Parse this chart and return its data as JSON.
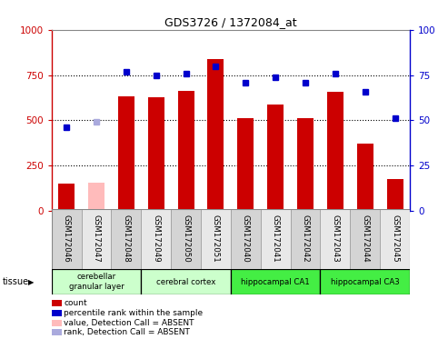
{
  "title": "GDS3726 / 1372084_at",
  "samples": [
    "GSM172046",
    "GSM172047",
    "GSM172048",
    "GSM172049",
    "GSM172050",
    "GSM172051",
    "GSM172040",
    "GSM172041",
    "GSM172042",
    "GSM172043",
    "GSM172044",
    "GSM172045"
  ],
  "bar_values": [
    150,
    155,
    635,
    630,
    665,
    840,
    510,
    590,
    510,
    660,
    370,
    175
  ],
  "bar_colors": [
    "#cc0000",
    "#ffbbbb",
    "#cc0000",
    "#cc0000",
    "#cc0000",
    "#cc0000",
    "#cc0000",
    "#cc0000",
    "#cc0000",
    "#cc0000",
    "#cc0000",
    "#cc0000"
  ],
  "rank_values": [
    46,
    49,
    77,
    75,
    76,
    80,
    71,
    74,
    71,
    76,
    66,
    51
  ],
  "rank_colors": [
    "#0000cc",
    "#aaaadd",
    "#0000cc",
    "#0000cc",
    "#0000cc",
    "#0000cc",
    "#0000cc",
    "#0000cc",
    "#0000cc",
    "#0000cc",
    "#0000cc",
    "#0000cc"
  ],
  "ylim_left": [
    0,
    1000
  ],
  "ylim_right": [
    0,
    100
  ],
  "yticks_left": [
    0,
    250,
    500,
    750,
    1000
  ],
  "yticks_right": [
    0,
    25,
    50,
    75,
    100
  ],
  "tissue_groups": [
    {
      "label": "cerebellar\ngranular layer",
      "start": 0,
      "end": 3,
      "color": "#ccffcc"
    },
    {
      "label": "cerebral cortex",
      "start": 3,
      "end": 6,
      "color": "#ccffcc"
    },
    {
      "label": "hippocampal CA1",
      "start": 6,
      "end": 9,
      "color": "#44ee44"
    },
    {
      "label": "hippocampal CA3",
      "start": 9,
      "end": 12,
      "color": "#44ee44"
    }
  ],
  "legend_items": [
    {
      "label": "count",
      "color": "#cc0000"
    },
    {
      "label": "percentile rank within the sample",
      "color": "#0000cc"
    },
    {
      "label": "value, Detection Call = ABSENT",
      "color": "#ffbbbb"
    },
    {
      "label": "rank, Detection Call = ABSENT",
      "color": "#aaaadd"
    }
  ],
  "tissue_label": "tissue",
  "left_axis_color": "#cc0000",
  "right_axis_color": "#0000cc",
  "plot_bg": "#ffffff",
  "grid_dotted_lines": [
    250,
    500,
    750
  ]
}
